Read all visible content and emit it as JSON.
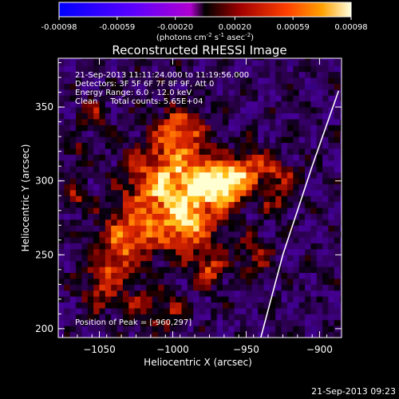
{
  "chart_data": {
    "type": "heatmap",
    "title": "Reconstructed RHESSI Image",
    "xlabel": "Heliocentric X (arcsec)",
    "ylabel": "Heliocentric Y (arcsec)",
    "xlim": [
      -1078,
      -885
    ],
    "ylim": [
      194,
      383
    ],
    "x_ticks": [
      -1050,
      -1000,
      -950,
      -900
    ],
    "y_ticks": [
      200,
      250,
      300,
      350
    ],
    "colorbar": {
      "min": -0.00098,
      "max": 0.00098,
      "ticks": [
        "-0.00098",
        "-0.00059",
        "-0.00020",
        "0.00020",
        "0.00059",
        "0.00098"
      ],
      "tick_values": [
        -0.00098,
        -0.00059,
        -0.0002,
        0.0002,
        0.00059,
        0.00098
      ],
      "unit_label_parts": [
        "(photons cm",
        "-2",
        " s",
        "-1",
        " asec",
        "-2",
        ")"
      ]
    },
    "info_lines": [
      "21-Sep-2013 11:11:24.000 to 11:19:56.000",
      "Detectors: 3F 5F 6F 7F 8F 9F, Att 0",
      "Energy Range: 6.0 - 12.0 keV",
      "Clean     Total counts: 5.65E+04"
    ],
    "peak_label": "Position of Peak = [-960,297]",
    "peak_position": [
      -960,
      297
    ],
    "limb_curve": [
      [
        -940,
        194
      ],
      [
        -925,
        250
      ],
      [
        -905,
        310
      ],
      [
        -887,
        361
      ]
    ],
    "colors": {
      "background": "#000000",
      "text": "#ffffff",
      "limb": "#ffffff"
    }
  },
  "footer": {
    "timestamp": "21-Sep-2013 09:23"
  }
}
